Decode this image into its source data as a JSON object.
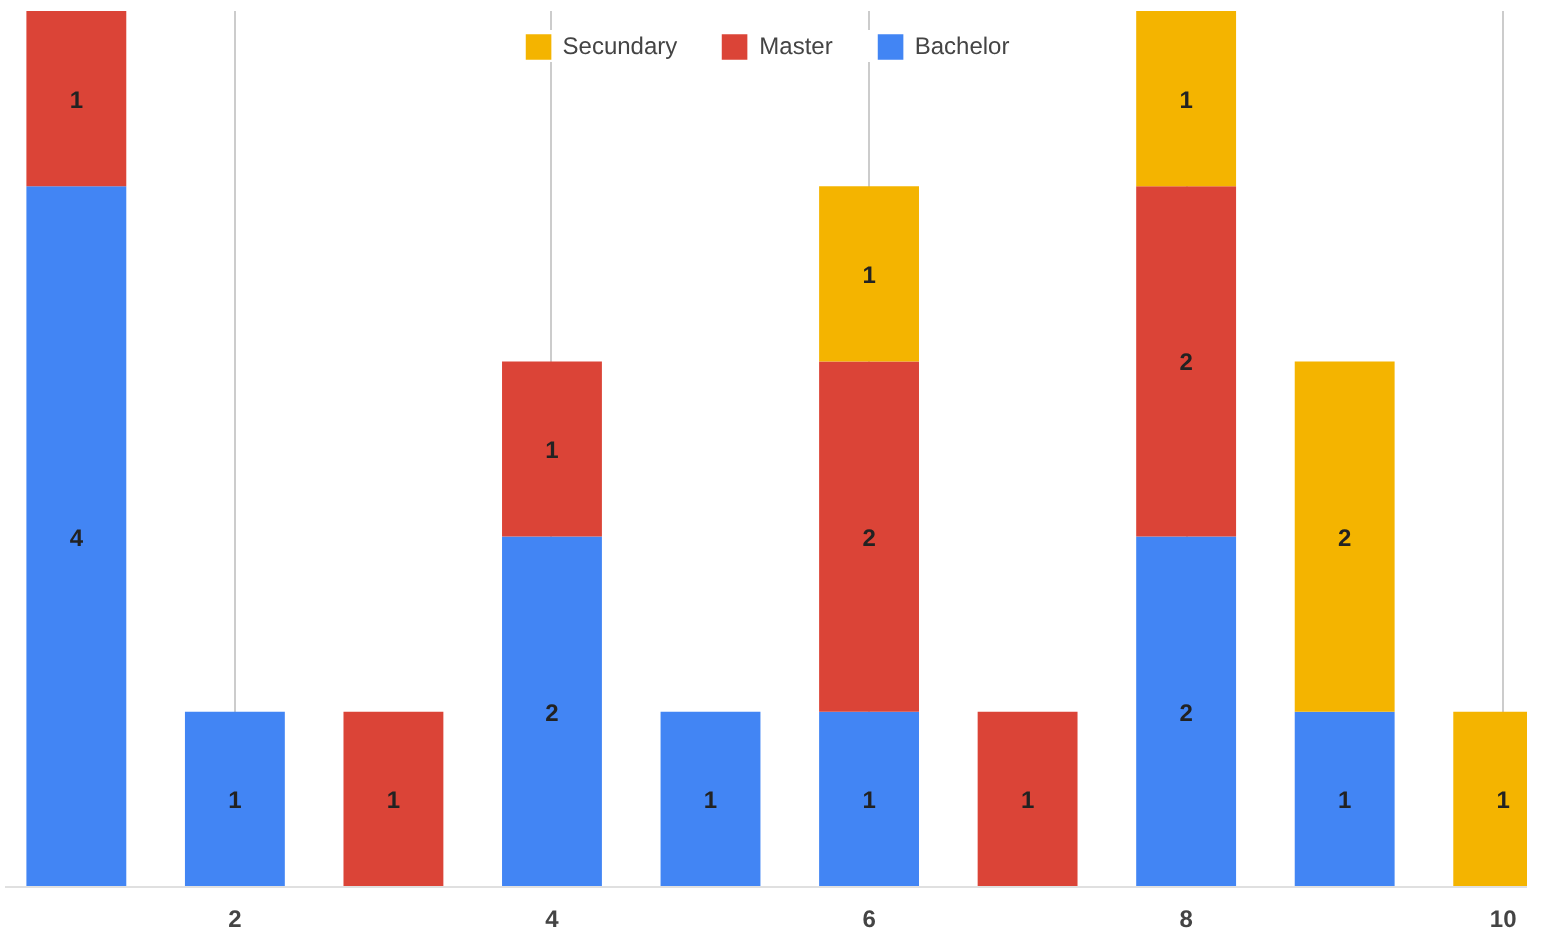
{
  "chart_data": {
    "type": "bar",
    "stacked": true,
    "x": [
      1,
      2,
      3,
      4,
      5,
      6,
      7,
      8,
      9,
      10
    ],
    "series": [
      {
        "name": "Bachelor",
        "color": "#4285f4",
        "values": [
          4,
          1,
          null,
          2,
          1,
          1,
          null,
          2,
          1,
          null
        ]
      },
      {
        "name": "Master",
        "color": "#db4437",
        "values": [
          1,
          null,
          1,
          1,
          null,
          2,
          1,
          2,
          null,
          null
        ]
      },
      {
        "name": "Secundary",
        "color": "#f4b400",
        "values": [
          null,
          null,
          null,
          null,
          null,
          1,
          null,
          1,
          2,
          1
        ]
      }
    ],
    "xlim": [
      0.55,
      10.15
    ],
    "xticks": [
      2,
      4,
      6,
      8,
      10
    ],
    "ylim": [
      0,
      5
    ],
    "tick_labels": "x",
    "grid": "x",
    "legend": "top",
    "data_labels": true
  }
}
